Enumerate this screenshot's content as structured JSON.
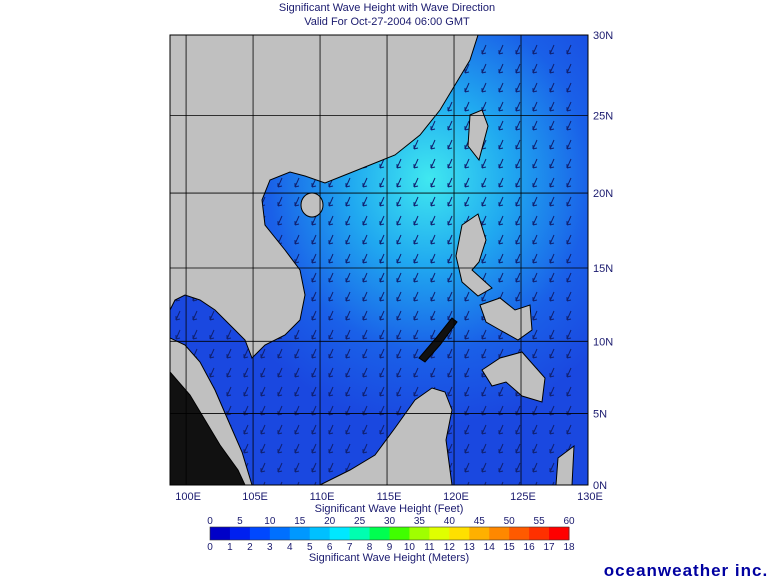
{
  "header": {
    "title": "Significant Wave Height with Wave Direction",
    "subtitle": "Valid For Oct-27-2004 06:00 GMT"
  },
  "map": {
    "lon_ticks": [
      {
        "value": 100,
        "label": "100E"
      },
      {
        "value": 105,
        "label": "105E"
      },
      {
        "value": 110,
        "label": "110E"
      },
      {
        "value": 115,
        "label": "115E"
      },
      {
        "value": 120,
        "label": "120E"
      },
      {
        "value": 125,
        "label": "125E"
      },
      {
        "value": 130,
        "label": "130E"
      }
    ],
    "lat_ticks": [
      {
        "value": 30,
        "label": "30N"
      },
      {
        "value": 25,
        "label": "25N"
      },
      {
        "value": 20,
        "label": "20N"
      },
      {
        "value": 15,
        "label": "15N"
      },
      {
        "value": 10,
        "label": "10N"
      },
      {
        "value": 5,
        "label": "5N"
      },
      {
        "value": 0,
        "label": "0N"
      }
    ]
  },
  "colorbar": {
    "feet_label": "Significant Wave Height (Feet)",
    "feet_ticks": [
      0,
      5,
      10,
      15,
      20,
      25,
      30,
      35,
      40,
      45,
      50,
      55,
      60
    ],
    "meters_label": "Significant Wave Height (Meters)",
    "meters_ticks": [
      0,
      1,
      2,
      3,
      4,
      5,
      6,
      7,
      8,
      9,
      10,
      11,
      12,
      13,
      14,
      15,
      16,
      17,
      18
    ],
    "colors": [
      "#0000c8",
      "#0020f0",
      "#0048ff",
      "#0070ff",
      "#0098ff",
      "#00c0ff",
      "#00e8ff",
      "#00ffb0",
      "#00ff50",
      "#40ff00",
      "#a0ff00",
      "#e0ff00",
      "#ffe000",
      "#ffb000",
      "#ff8800",
      "#ff5a00",
      "#ff3000",
      "#ff0000"
    ]
  },
  "footer": {
    "brand": "oceanweather inc."
  }
}
